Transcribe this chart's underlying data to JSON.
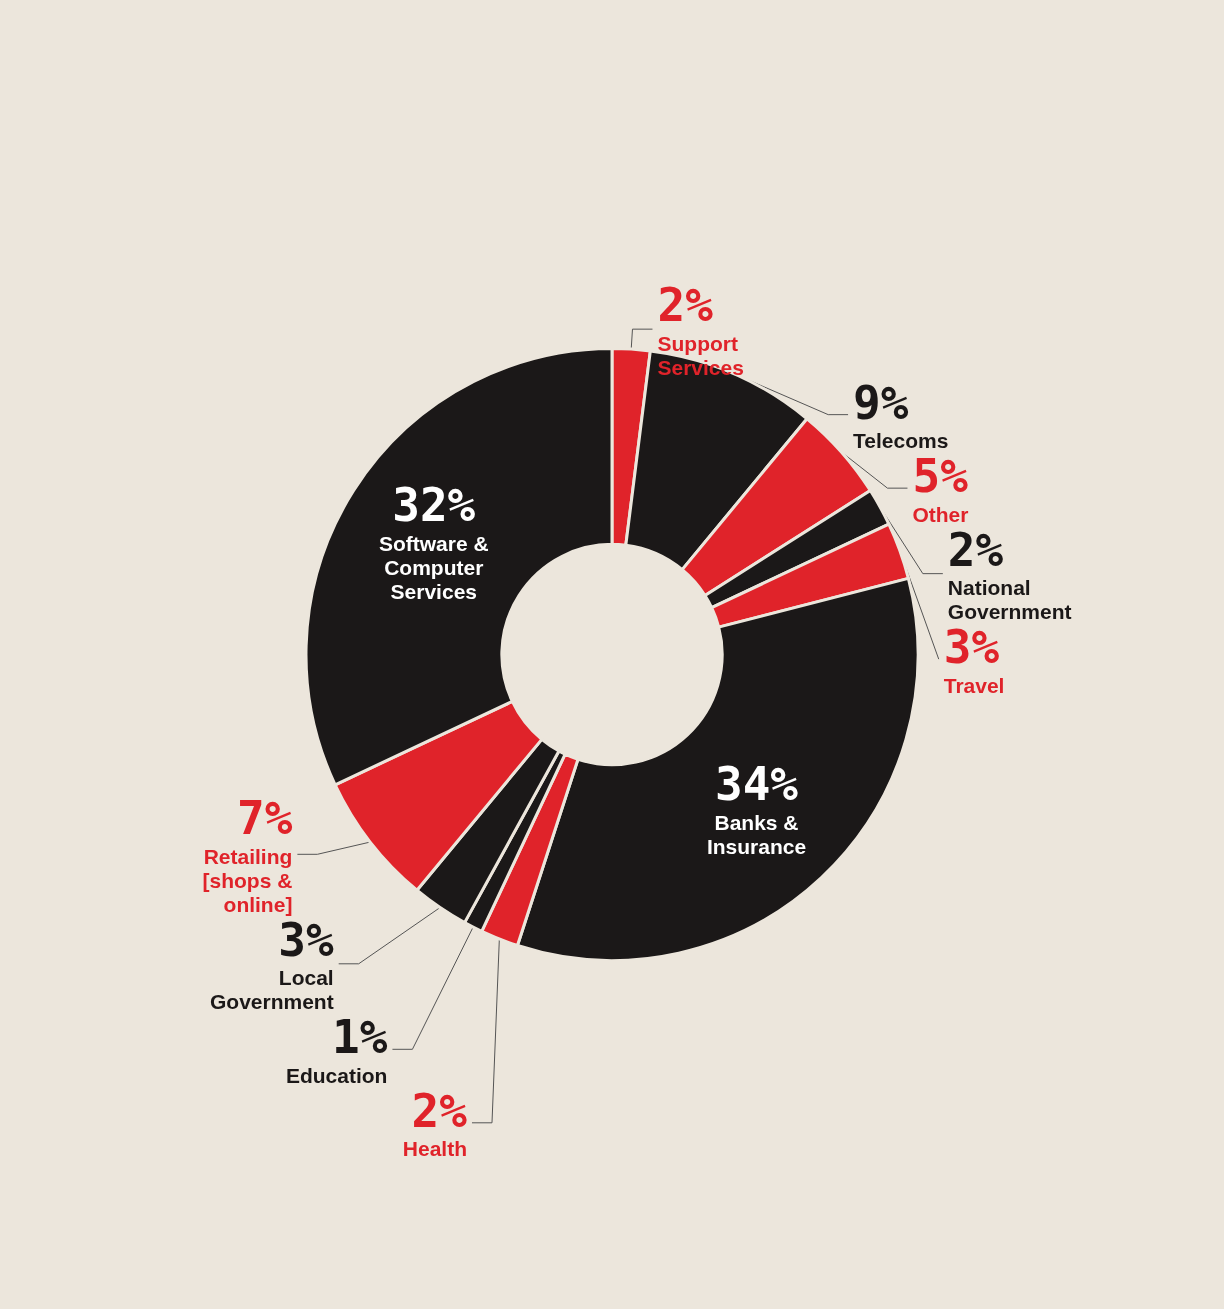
{
  "chart_data": {
    "type": "donut",
    "categories": [
      "Support Services",
      "Telecoms",
      "Other",
      "National Government",
      "Travel",
      "Banks & Insurance",
      "Health",
      "Education",
      "Local Government",
      "Retailing [shops & online]",
      "Software & Computer Services"
    ],
    "values": [
      2,
      9,
      5,
      2,
      3,
      34,
      2,
      1,
      3,
      7,
      32
    ],
    "value_labels": [
      "2%",
      "9%",
      "5%",
      "2%",
      "3%",
      "34%",
      "2%",
      "1%",
      "3%",
      "7%",
      "32%"
    ],
    "colors": [
      "#e0232a",
      "#1b1818",
      "#e0232a",
      "#1b1818",
      "#e0232a",
      "#1b1818",
      "#e0232a",
      "#1b1818",
      "#1b1818",
      "#e0232a",
      "#1b1818"
    ],
    "legend": false
  }
}
